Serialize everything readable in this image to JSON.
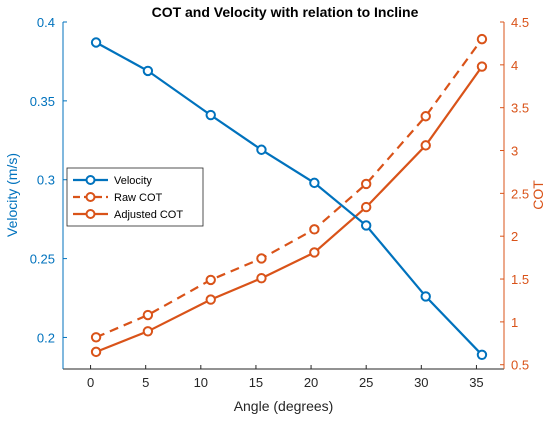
{
  "chart_data": {
    "type": "line",
    "title": "COT and Velocity with relation to Incline",
    "xlabel": "Angle (degrees)",
    "ylabel_left": "Velocity (m/s)",
    "ylabel_right": "COT",
    "xlim": [
      -2.5,
      37.5
    ],
    "ylim_left": [
      0.18,
      0.4
    ],
    "ylim_right": [
      0.45,
      4.5
    ],
    "xticks": [
      0,
      5,
      10,
      15,
      20,
      25,
      30,
      35
    ],
    "yticks_left": [
      0.2,
      0.25,
      0.3,
      0.35,
      0.4
    ],
    "yticks_right": [
      0.5,
      1,
      1.5,
      2,
      2.5,
      3,
      3.5,
      4,
      4.5
    ],
    "xtick_labels": [
      "0",
      "5",
      "10",
      "15",
      "20",
      "25",
      "30",
      "35"
    ],
    "ytick_labels_left": [
      "0.2",
      "0.25",
      "0.3",
      "0.35",
      "0.4"
    ],
    "ytick_labels_right": [
      "0.5",
      "1",
      "1.5",
      "2",
      "2.5",
      "3",
      "3.5",
      "4",
      "4.5"
    ],
    "grid": false,
    "legend_placement": "center-left",
    "series": [
      {
        "name": "Velocity",
        "axis": "left",
        "style": "solid",
        "color": "#0072BD",
        "x": [
          0.5,
          5.2,
          10.9,
          15.5,
          20.3,
          25.0,
          30.4,
          35.5
        ],
        "values": [
          0.387,
          0.369,
          0.341,
          0.319,
          0.298,
          0.271,
          0.226,
          0.189
        ]
      },
      {
        "name": "Raw COT",
        "axis": "right",
        "style": "dashed",
        "color": "#D95319",
        "x": [
          0.5,
          5.2,
          10.9,
          15.5,
          20.3,
          25.0,
          30.4,
          35.5
        ],
        "values": [
          0.82,
          1.08,
          1.49,
          1.74,
          2.08,
          2.61,
          3.4,
          4.3
        ]
      },
      {
        "name": "Adjusted COT",
        "axis": "right",
        "style": "solid",
        "color": "#D95319",
        "x": [
          0.5,
          5.2,
          10.9,
          15.5,
          20.3,
          25.0,
          30.4,
          35.5
        ],
        "values": [
          0.65,
          0.89,
          1.26,
          1.51,
          1.81,
          2.34,
          3.06,
          3.98
        ]
      }
    ]
  }
}
